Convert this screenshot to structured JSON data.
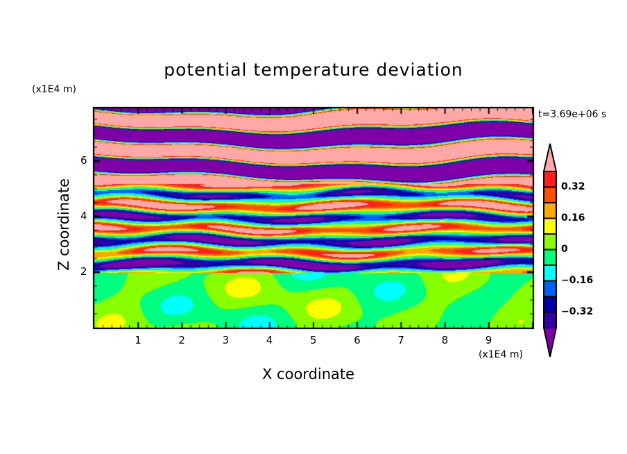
{
  "chart_data": {
    "type": "heatmap",
    "title": "potential temperature deviation",
    "xlabel": "X coordinate",
    "ylabel": "Z coordinate",
    "x_unit": "(x1E4 m)",
    "y_unit": "(x1E4 m)",
    "time_label": "t=3.69e+06 s",
    "xlim": [
      0,
      10
    ],
    "ylim": [
      0,
      7.9
    ],
    "x_ticks": [
      "1",
      "2",
      "3",
      "4",
      "5",
      "6",
      "7",
      "8",
      "9"
    ],
    "y_ticks": [
      "2",
      "4",
      "6"
    ],
    "colorbar": {
      "levels": [
        -0.4,
        -0.32,
        -0.24,
        -0.16,
        -0.08,
        0,
        0.08,
        0.16,
        0.24,
        0.32,
        0.4
      ],
      "labels": [
        "0.32",
        "0.16",
        "0",
        "−0.16",
        "−0.32"
      ],
      "label_values": [
        0.32,
        0.16,
        0,
        -0.16,
        -0.32
      ],
      "colors": [
        "#3400a4",
        "#0000a8",
        "#0060ff",
        "#00ffff",
        "#00ff80",
        "#88ff00",
        "#ffff00",
        "#ffa800",
        "#ff5000",
        "#ff2020"
      ],
      "under_color": "#8000a8",
      "over_color": "#ffa8a8",
      "extend": "both"
    },
    "description_regions": {
      "z_below_2": "values near 0 (0 to 0.08 and -0.08 to 0)",
      "z_2_to_5": "mixed layered values -0.4 to 0.4",
      "z_above_5": "alternating bands beyond +0.4 and below -0.4"
    }
  }
}
